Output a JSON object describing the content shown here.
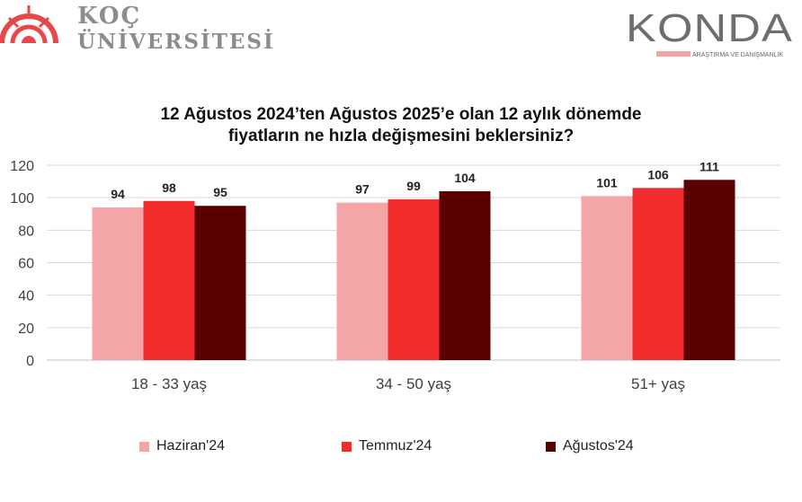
{
  "logos": {
    "koc_line1": "KOÇ",
    "koc_line2": "ÜNİVERSİTESİ",
    "konda_name": "KONDA",
    "konda_tagline": "ARAŞTIRMA VE DANIŞMANLIK"
  },
  "chart_data": {
    "type": "bar",
    "title": "12 Ağustos 2024’ten Ağustos 2025’e olan 12 aylık dönemde fiyatların ne hızla değişmesini beklersiniz?",
    "title_line1": "12 Ağustos 2024’ten Ağustos 2025’e olan 12 aylık dönemde",
    "title_line2": "fiyatların ne hızla değişmesini beklersiniz?",
    "categories": [
      "18 - 33 yaş",
      "34 - 50 yaş",
      "51+ yaş"
    ],
    "series": [
      {
        "name": "Haziran'24",
        "color": "#f4a6a6",
        "values": [
          94,
          97,
          101
        ]
      },
      {
        "name": "Temmuz'24",
        "color": "#f02c2c",
        "values": [
          98,
          99,
          106
        ]
      },
      {
        "name": "Ağustos'24",
        "color": "#5a0000",
        "values": [
          95,
          104,
          111
        ]
      }
    ],
    "ylim": [
      0,
      120
    ],
    "yticks": [
      0,
      20,
      40,
      60,
      80,
      100,
      120
    ],
    "grid": true,
    "legend": "bottom"
  }
}
